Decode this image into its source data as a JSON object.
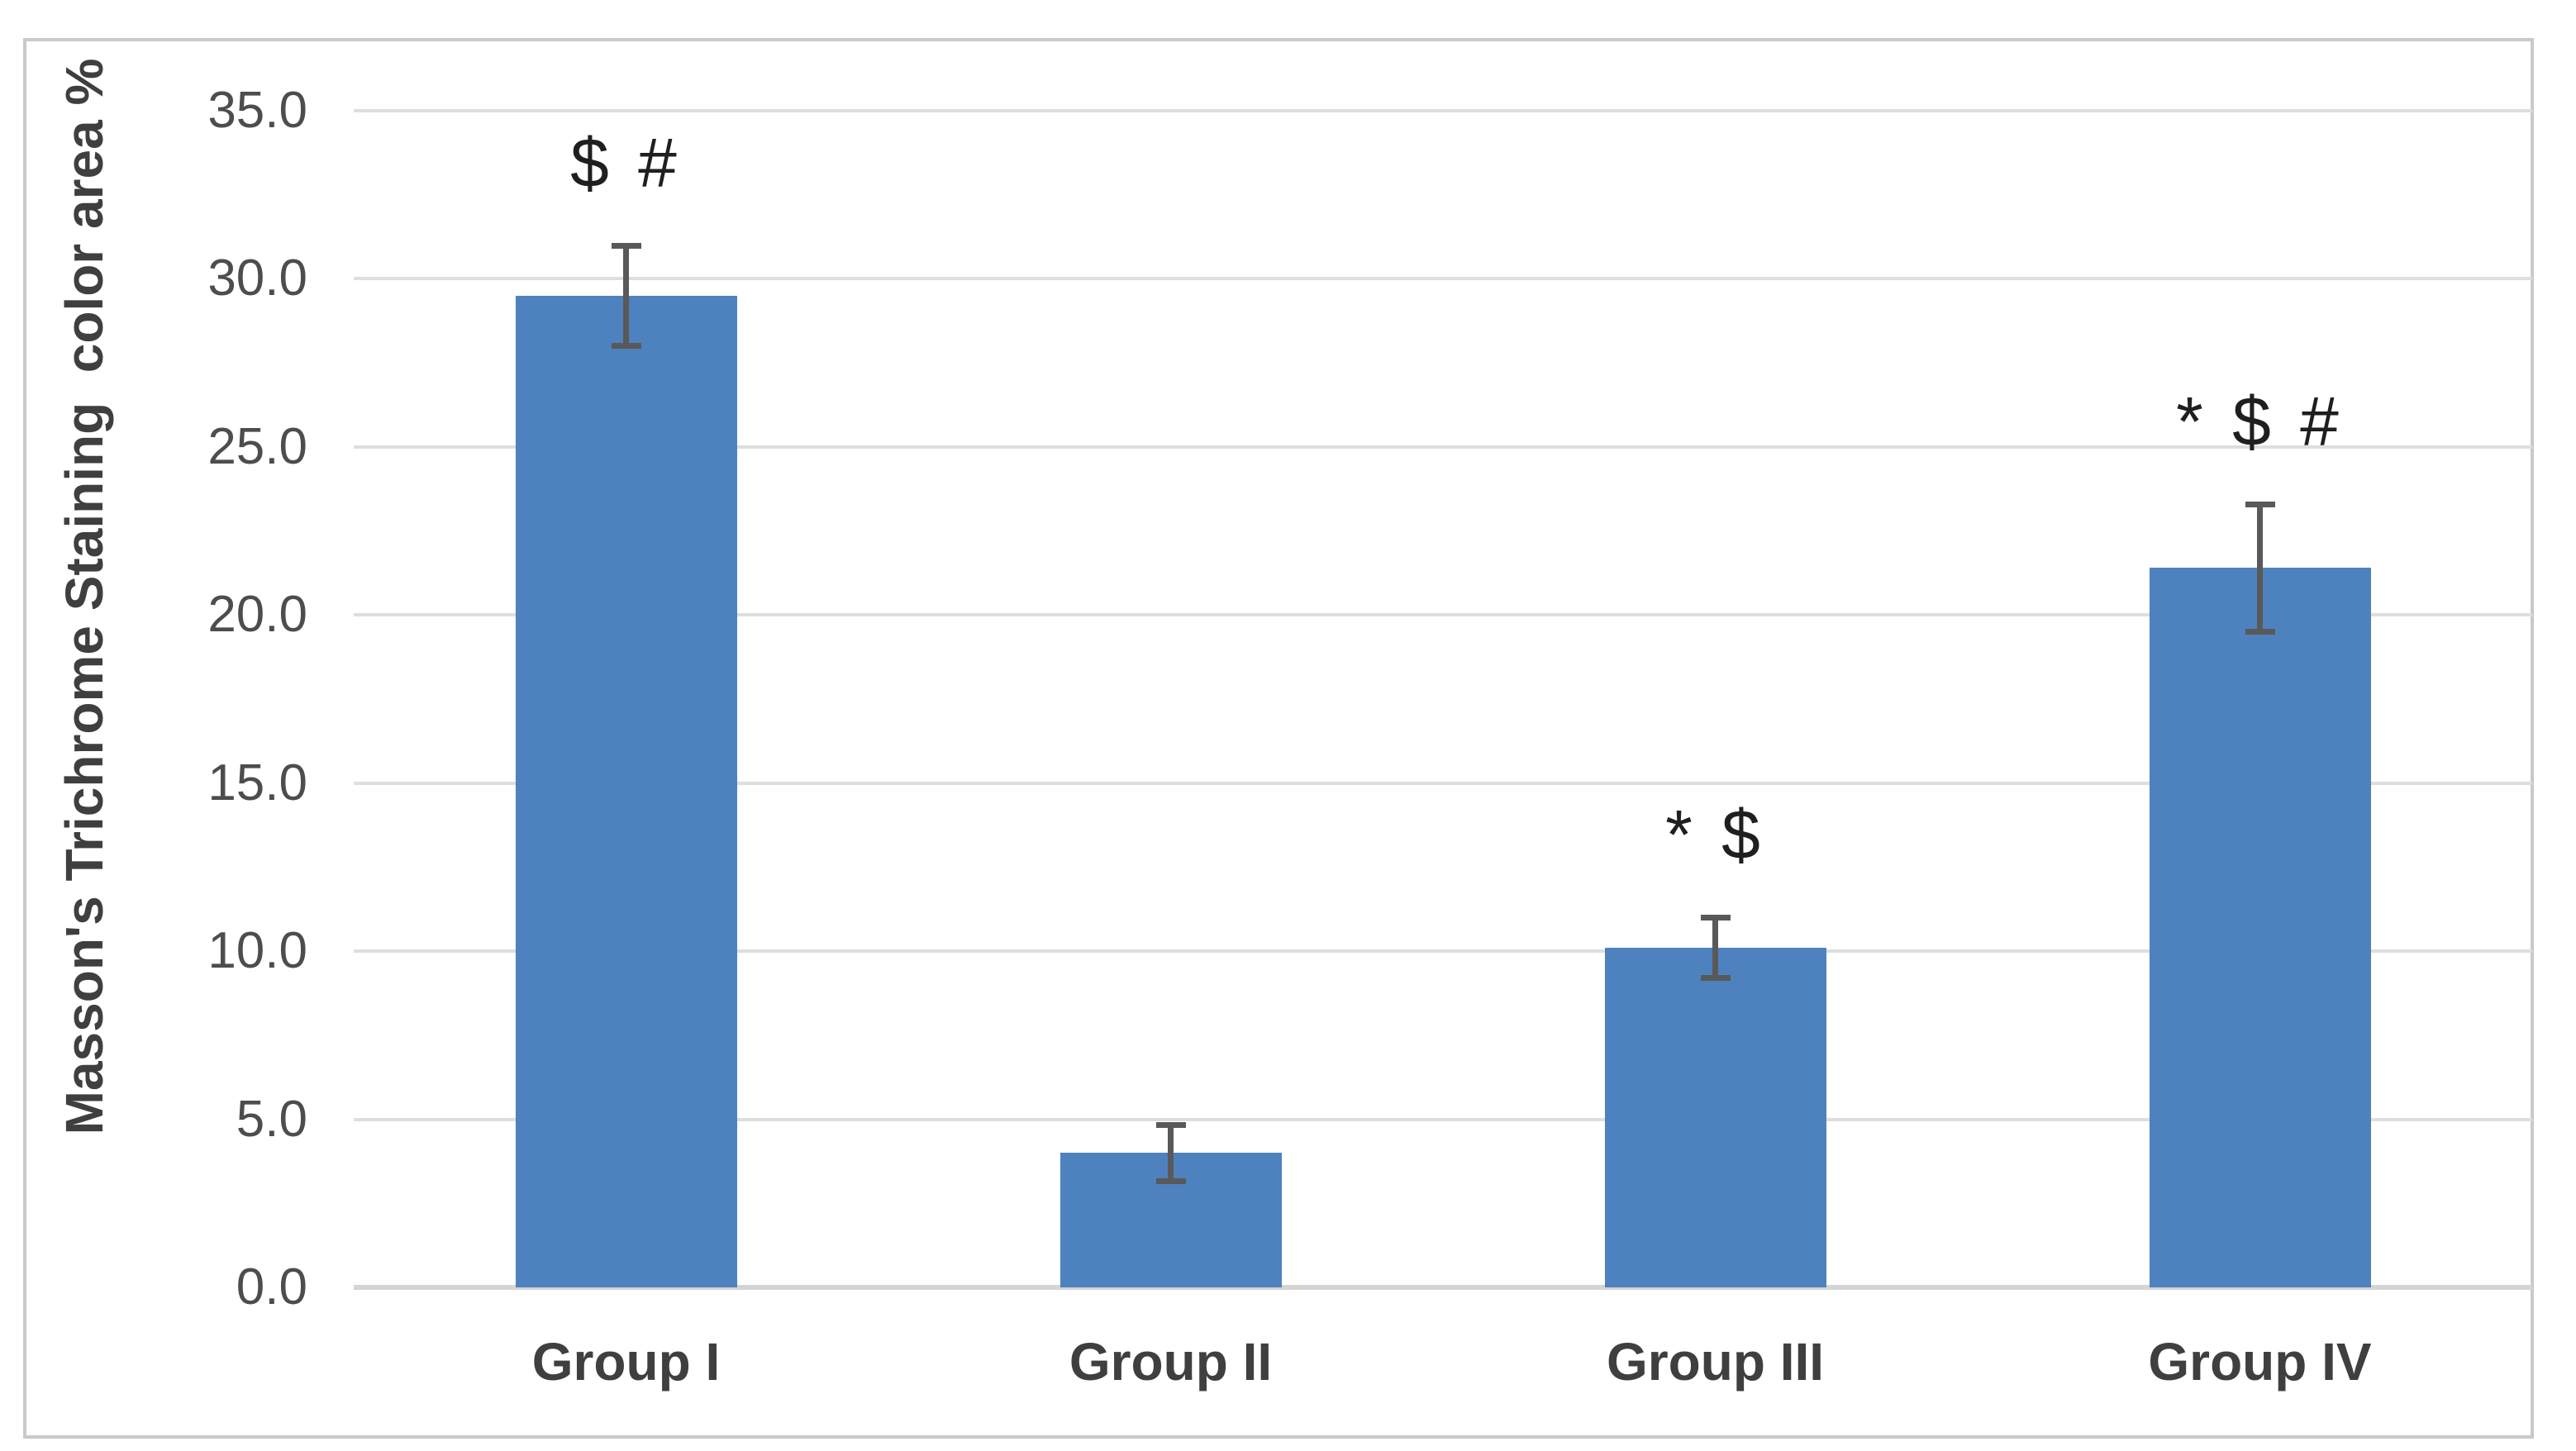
{
  "chart_data": {
    "type": "bar",
    "title": "",
    "xlabel": "",
    "ylabel": "Masson's Trichrome Staining  color area %",
    "categories": [
      "Group I",
      "Group II",
      "Group III",
      "Group IV"
    ],
    "values": [
      29.5,
      4.0,
      10.1,
      21.4
    ],
    "error_bars": [
      1.5,
      0.85,
      0.9,
      1.9
    ],
    "annotations": [
      "$ #",
      "",
      "* $",
      "* $ #"
    ],
    "ylim": [
      0,
      35
    ],
    "ytick_step": 5,
    "ytick_labels": [
      "0.0",
      "5.0",
      "10.0",
      "15.0",
      "20.0",
      "25.0",
      "30.0",
      "35.0"
    ],
    "grid": true,
    "legend": "none",
    "colors": {
      "bar_fill": "#4e82be",
      "error_bar": "#595959",
      "gridline": "#dedede",
      "axis_line": "#d4d4d4",
      "frame_border": "#c9c9c9",
      "tick_label": "#4d4d4d",
      "axis_title": "#3f3f3f",
      "annotation": "#1f1f1f",
      "background": "#ffffff"
    }
  }
}
